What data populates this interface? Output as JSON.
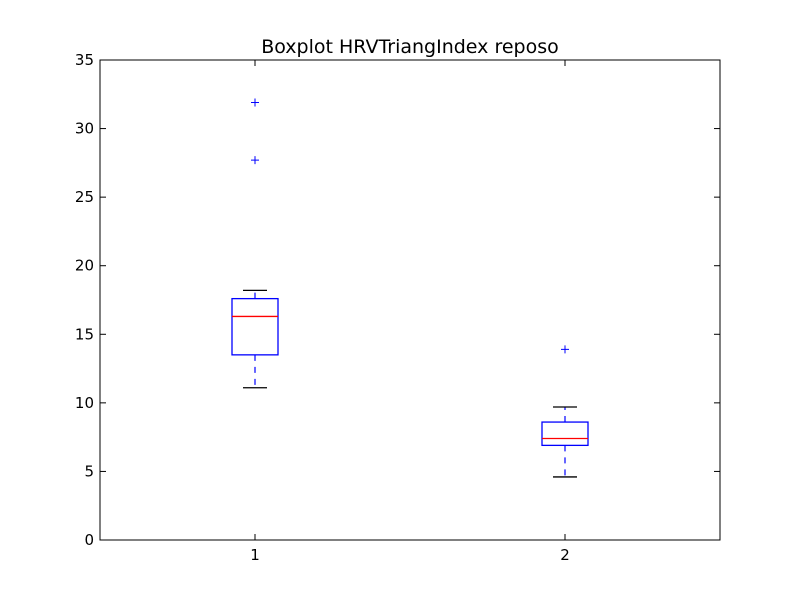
{
  "chart_data": {
    "type": "boxplot",
    "title": "Boxplot HRVTriangIndex reposo",
    "xlabel": "",
    "ylabel": "",
    "categories": [
      "1",
      "2"
    ],
    "ylim": [
      0,
      35
    ],
    "yticks": [
      0,
      5,
      10,
      15,
      20,
      25,
      30,
      35
    ],
    "ytick_labels": [
      "0",
      "5",
      "10",
      "15",
      "20",
      "25",
      "30",
      "35"
    ],
    "grid": false,
    "boxes": [
      {
        "category": "1",
        "whisker_low": 11.1,
        "q1": 13.5,
        "median": 16.3,
        "q3": 17.6,
        "whisker_high": 18.2,
        "outliers": [
          27.7,
          31.9
        ]
      },
      {
        "category": "2",
        "whisker_low": 4.6,
        "q1": 6.9,
        "median": 7.4,
        "q3": 8.6,
        "whisker_high": 9.7,
        "outliers": [
          13.9
        ]
      }
    ],
    "colors": {
      "box": "#0000ff",
      "median": "#ff0000",
      "whisker": "#0000ff",
      "cap": "#000000",
      "outlier": "#0000ff",
      "axes": "#000000"
    }
  }
}
